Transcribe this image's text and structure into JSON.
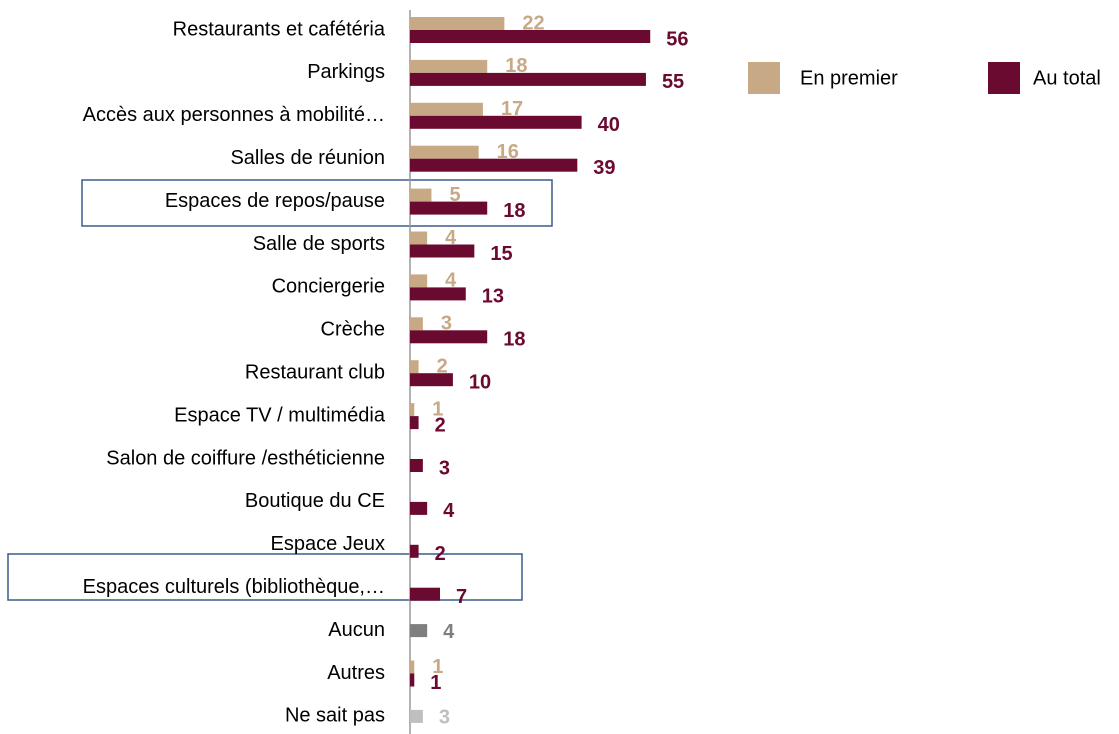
{
  "chart_data": {
    "type": "hbar",
    "categories": [
      "Restaurants et cafétéria",
      "Parkings",
      "Accès aux personnes à mobilité…",
      "Salles de réunion",
      "Espaces de repos/pause",
      "Salle de sports",
      "Conciergerie",
      "Crèche",
      "Restaurant club",
      "Espace TV / multimédia",
      "Salon de coiffure /esthéticienne",
      "Boutique du CE",
      "Espace Jeux",
      "Espaces culturels (bibliothèque,…",
      "Aucun",
      "Autres",
      "Ne sait pas"
    ],
    "series": [
      {
        "name": "En premier",
        "color": "#c8a985",
        "values": [
          22,
          18,
          17,
          16,
          5,
          4,
          4,
          3,
          2,
          1,
          null,
          null,
          null,
          null,
          null,
          1,
          null
        ]
      },
      {
        "name": "Au total",
        "color": "#6b0a30",
        "values": [
          56,
          55,
          40,
          39,
          18,
          15,
          13,
          18,
          10,
          2,
          3,
          4,
          2,
          7,
          null,
          1,
          null
        ]
      },
      {
        "values": [
          null,
          null,
          null,
          null,
          null,
          null,
          null,
          null,
          null,
          null,
          null,
          null,
          null,
          null,
          4,
          null,
          3
        ],
        "colors": [
          null,
          null,
          null,
          null,
          null,
          null,
          null,
          null,
          null,
          null,
          null,
          null,
          null,
          null,
          "#7f7f7f",
          null,
          "#bfbfbf"
        ]
      }
    ]
  }
}
